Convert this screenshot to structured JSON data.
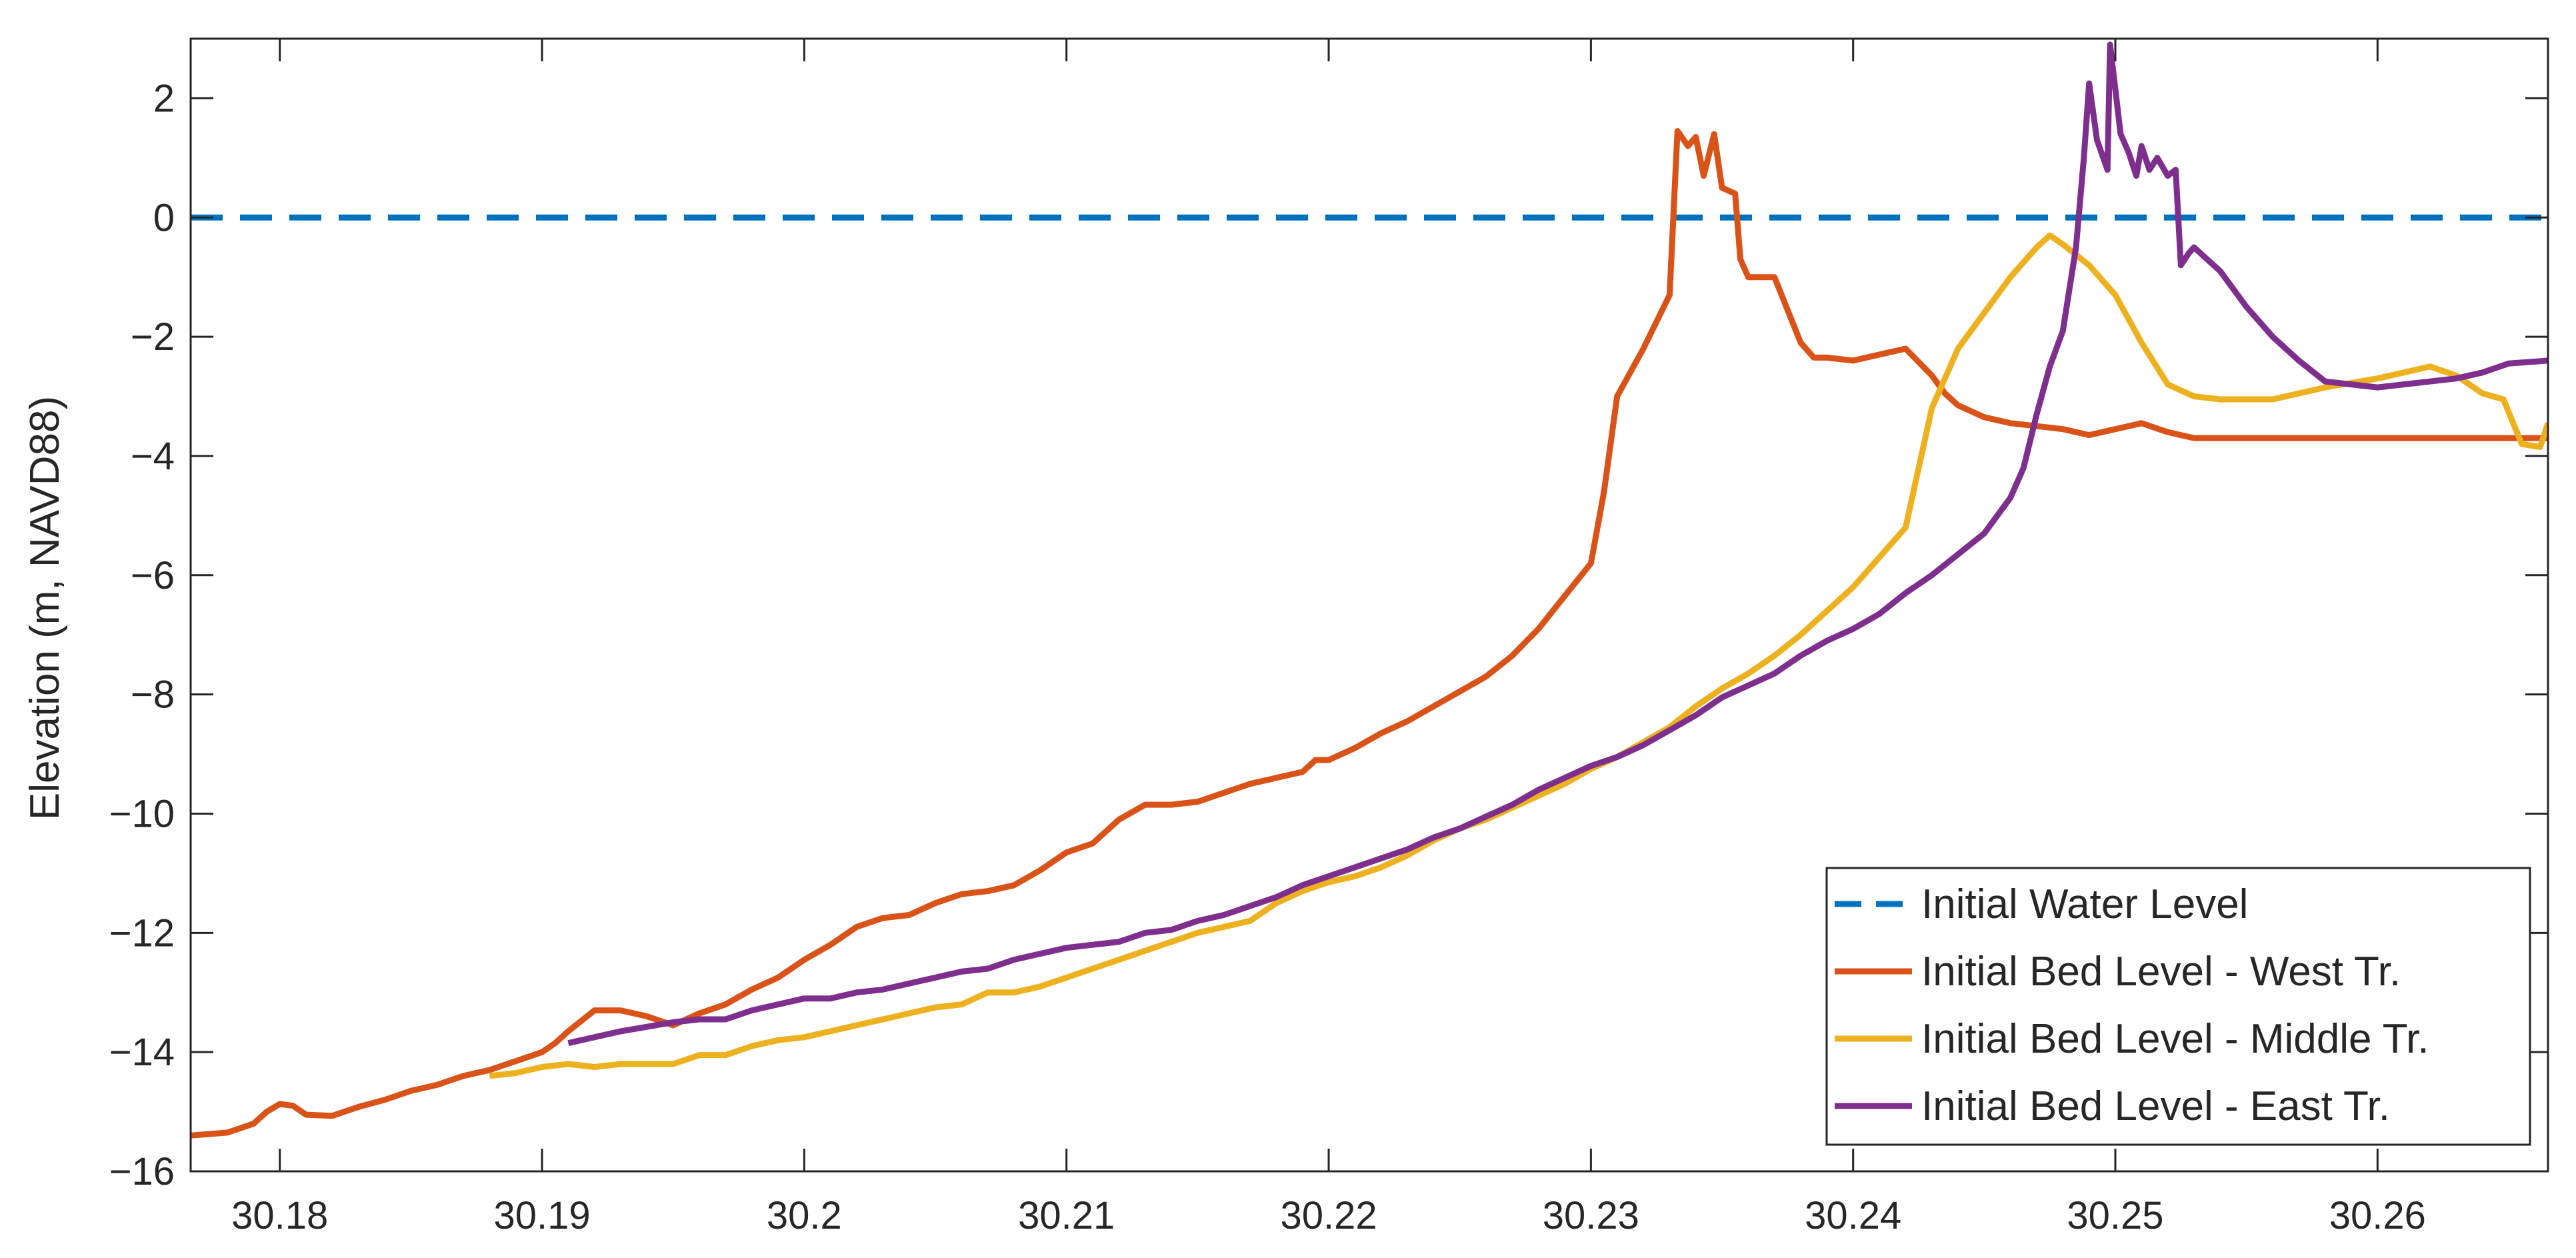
{
  "chart_data": {
    "type": "line",
    "ylabel": "Elevation (m, NAVD88)",
    "xlabel": "",
    "xlim": [
      30.1766,
      30.2665
    ],
    "ylim": [
      -16,
      3
    ],
    "xticks": [
      "30.18",
      "30.19",
      "30.2",
      "30.21",
      "30.22",
      "30.23",
      "30.24",
      "30.25",
      "30.26"
    ],
    "yticks": [
      "2",
      "0",
      "−2",
      "−4",
      "−6",
      "−8",
      "−10",
      "−12",
      "−14",
      "−16"
    ],
    "grid": false,
    "legend_position": "bottom-right",
    "series": [
      {
        "name": "Initial Water Level",
        "color": "#0072BD",
        "style": "dashed",
        "points": [
          [
            30.1766,
            0
          ],
          [
            30.2665,
            0
          ]
        ]
      },
      {
        "name": "Initial Bed Level - West Tr.",
        "color": "#D95319",
        "style": "solid",
        "points": [
          [
            30.1766,
            -15.4
          ],
          [
            30.178,
            -15.35
          ],
          [
            30.179,
            -15.2
          ],
          [
            30.1795,
            -15.0
          ],
          [
            30.18,
            -14.87
          ],
          [
            30.1805,
            -14.9
          ],
          [
            30.181,
            -15.05
          ],
          [
            30.182,
            -15.07
          ],
          [
            30.183,
            -14.92
          ],
          [
            30.184,
            -14.8
          ],
          [
            30.185,
            -14.65
          ],
          [
            30.186,
            -14.55
          ],
          [
            30.187,
            -14.4
          ],
          [
            30.188,
            -14.3
          ],
          [
            30.189,
            -14.15
          ],
          [
            30.19,
            -14.0
          ],
          [
            30.1905,
            -13.85
          ],
          [
            30.191,
            -13.65
          ],
          [
            30.192,
            -13.3
          ],
          [
            30.193,
            -13.3
          ],
          [
            30.194,
            -13.4
          ],
          [
            30.195,
            -13.55
          ],
          [
            30.196,
            -13.35
          ],
          [
            30.197,
            -13.2
          ],
          [
            30.198,
            -12.95
          ],
          [
            30.199,
            -12.75
          ],
          [
            30.2,
            -12.45
          ],
          [
            30.201,
            -12.2
          ],
          [
            30.202,
            -11.9
          ],
          [
            30.203,
            -11.75
          ],
          [
            30.204,
            -11.7
          ],
          [
            30.205,
            -11.5
          ],
          [
            30.206,
            -11.35
          ],
          [
            30.207,
            -11.3
          ],
          [
            30.208,
            -11.2
          ],
          [
            30.209,
            -10.95
          ],
          [
            30.21,
            -10.65
          ],
          [
            30.211,
            -10.5
          ],
          [
            30.212,
            -10.1
          ],
          [
            30.213,
            -9.85
          ],
          [
            30.214,
            -9.85
          ],
          [
            30.215,
            -9.8
          ],
          [
            30.216,
            -9.65
          ],
          [
            30.217,
            -9.5
          ],
          [
            30.218,
            -9.4
          ],
          [
            30.219,
            -9.3
          ],
          [
            30.2195,
            -9.1
          ],
          [
            30.22,
            -9.1
          ],
          [
            30.221,
            -8.9
          ],
          [
            30.222,
            -8.65
          ],
          [
            30.223,
            -8.45
          ],
          [
            30.224,
            -8.2
          ],
          [
            30.225,
            -7.95
          ],
          [
            30.226,
            -7.7
          ],
          [
            30.227,
            -7.35
          ],
          [
            30.228,
            -6.9
          ],
          [
            30.229,
            -6.35
          ],
          [
            30.23,
            -5.8
          ],
          [
            30.2305,
            -4.6
          ],
          [
            30.231,
            -3.0
          ],
          [
            30.232,
            -2.2
          ],
          [
            30.233,
            -1.3
          ],
          [
            30.2333,
            1.45
          ],
          [
            30.2337,
            1.2
          ],
          [
            30.234,
            1.35
          ],
          [
            30.2343,
            0.7
          ],
          [
            30.2347,
            1.4
          ],
          [
            30.235,
            0.5
          ],
          [
            30.2355,
            0.4
          ],
          [
            30.2357,
            -0.7
          ],
          [
            30.236,
            -1.0
          ],
          [
            30.237,
            -1.0
          ],
          [
            30.238,
            -2.1
          ],
          [
            30.2385,
            -2.35
          ],
          [
            30.239,
            -2.35
          ],
          [
            30.24,
            -2.4
          ],
          [
            30.241,
            -2.3
          ],
          [
            30.242,
            -2.2
          ],
          [
            30.243,
            -2.65
          ],
          [
            30.2435,
            -2.95
          ],
          [
            30.244,
            -3.15
          ],
          [
            30.245,
            -3.35
          ],
          [
            30.246,
            -3.45
          ],
          [
            30.247,
            -3.5
          ],
          [
            30.248,
            -3.55
          ],
          [
            30.249,
            -3.65
          ],
          [
            30.25,
            -3.55
          ],
          [
            30.251,
            -3.45
          ],
          [
            30.252,
            -3.6
          ],
          [
            30.253,
            -3.7
          ],
          [
            30.256,
            -3.7
          ],
          [
            30.26,
            -3.7
          ],
          [
            30.2665,
            -3.7
          ]
        ]
      },
      {
        "name": "Initial Bed Level - Middle Tr.",
        "color": "#EDB120",
        "style": "solid",
        "points": [
          [
            30.188,
            -14.4
          ],
          [
            30.189,
            -14.35
          ],
          [
            30.19,
            -14.25
          ],
          [
            30.191,
            -14.2
          ],
          [
            30.192,
            -14.25
          ],
          [
            30.193,
            -14.2
          ],
          [
            30.195,
            -14.2
          ],
          [
            30.196,
            -14.05
          ],
          [
            30.197,
            -14.05
          ],
          [
            30.198,
            -13.9
          ],
          [
            30.199,
            -13.8
          ],
          [
            30.2,
            -13.75
          ],
          [
            30.201,
            -13.65
          ],
          [
            30.202,
            -13.55
          ],
          [
            30.203,
            -13.45
          ],
          [
            30.204,
            -13.35
          ],
          [
            30.205,
            -13.25
          ],
          [
            30.206,
            -13.2
          ],
          [
            30.207,
            -13.0
          ],
          [
            30.208,
            -13.0
          ],
          [
            30.209,
            -12.9
          ],
          [
            30.21,
            -12.75
          ],
          [
            30.211,
            -12.6
          ],
          [
            30.212,
            -12.45
          ],
          [
            30.213,
            -12.3
          ],
          [
            30.214,
            -12.15
          ],
          [
            30.215,
            -12.0
          ],
          [
            30.216,
            -11.9
          ],
          [
            30.217,
            -11.8
          ],
          [
            30.218,
            -11.5
          ],
          [
            30.219,
            -11.3
          ],
          [
            30.22,
            -11.15
          ],
          [
            30.221,
            -11.05
          ],
          [
            30.222,
            -10.9
          ],
          [
            30.223,
            -10.7
          ],
          [
            30.224,
            -10.45
          ],
          [
            30.225,
            -10.25
          ],
          [
            30.226,
            -10.1
          ],
          [
            30.227,
            -9.9
          ],
          [
            30.228,
            -9.7
          ],
          [
            30.229,
            -9.5
          ],
          [
            30.23,
            -9.25
          ],
          [
            30.231,
            -9.05
          ],
          [
            30.232,
            -8.8
          ],
          [
            30.233,
            -8.55
          ],
          [
            30.234,
            -8.2
          ],
          [
            30.235,
            -7.9
          ],
          [
            30.236,
            -7.65
          ],
          [
            30.237,
            -7.35
          ],
          [
            30.238,
            -7.0
          ],
          [
            30.239,
            -6.6
          ],
          [
            30.24,
            -6.2
          ],
          [
            30.241,
            -5.7
          ],
          [
            30.242,
            -5.2
          ],
          [
            30.2425,
            -4.2
          ],
          [
            30.243,
            -3.2
          ],
          [
            30.244,
            -2.2
          ],
          [
            30.245,
            -1.6
          ],
          [
            30.246,
            -1.0
          ],
          [
            30.247,
            -0.5
          ],
          [
            30.2475,
            -0.3
          ],
          [
            30.248,
            -0.45
          ],
          [
            30.249,
            -0.8
          ],
          [
            30.25,
            -1.3
          ],
          [
            30.251,
            -2.1
          ],
          [
            30.252,
            -2.8
          ],
          [
            30.253,
            -3.0
          ],
          [
            30.254,
            -3.05
          ],
          [
            30.256,
            -3.05
          ],
          [
            30.258,
            -2.85
          ],
          [
            30.26,
            -2.7
          ],
          [
            30.261,
            -2.6
          ],
          [
            30.262,
            -2.5
          ],
          [
            30.263,
            -2.65
          ],
          [
            30.264,
            -2.95
          ],
          [
            30.2648,
            -3.05
          ],
          [
            30.2655,
            -3.8
          ],
          [
            30.2662,
            -3.85
          ],
          [
            30.2665,
            -3.45
          ]
        ]
      },
      {
        "name": "Initial Bed Level - East Tr.",
        "color": "#7E2F8E",
        "style": "solid",
        "points": [
          [
            30.191,
            -13.85
          ],
          [
            30.192,
            -13.75
          ],
          [
            30.193,
            -13.65
          ],
          [
            30.195,
            -13.5
          ],
          [
            30.196,
            -13.45
          ],
          [
            30.197,
            -13.45
          ],
          [
            30.198,
            -13.3
          ],
          [
            30.199,
            -13.2
          ],
          [
            30.2,
            -13.1
          ],
          [
            30.201,
            -13.1
          ],
          [
            30.202,
            -13.0
          ],
          [
            30.203,
            -12.95
          ],
          [
            30.204,
            -12.85
          ],
          [
            30.205,
            -12.75
          ],
          [
            30.206,
            -12.65
          ],
          [
            30.207,
            -12.6
          ],
          [
            30.208,
            -12.45
          ],
          [
            30.209,
            -12.35
          ],
          [
            30.21,
            -12.25
          ],
          [
            30.211,
            -12.2
          ],
          [
            30.212,
            -12.15
          ],
          [
            30.213,
            -12.0
          ],
          [
            30.214,
            -11.95
          ],
          [
            30.215,
            -11.8
          ],
          [
            30.216,
            -11.7
          ],
          [
            30.217,
            -11.55
          ],
          [
            30.218,
            -11.4
          ],
          [
            30.219,
            -11.2
          ],
          [
            30.22,
            -11.05
          ],
          [
            30.221,
            -10.9
          ],
          [
            30.222,
            -10.75
          ],
          [
            30.223,
            -10.6
          ],
          [
            30.224,
            -10.4
          ],
          [
            30.225,
            -10.25
          ],
          [
            30.226,
            -10.05
          ],
          [
            30.227,
            -9.85
          ],
          [
            30.228,
            -9.6
          ],
          [
            30.229,
            -9.4
          ],
          [
            30.23,
            -9.2
          ],
          [
            30.231,
            -9.05
          ],
          [
            30.232,
            -8.85
          ],
          [
            30.233,
            -8.6
          ],
          [
            30.234,
            -8.35
          ],
          [
            30.235,
            -8.05
          ],
          [
            30.236,
            -7.85
          ],
          [
            30.237,
            -7.65
          ],
          [
            30.238,
            -7.35
          ],
          [
            30.239,
            -7.1
          ],
          [
            30.24,
            -6.9
          ],
          [
            30.241,
            -6.65
          ],
          [
            30.242,
            -6.3
          ],
          [
            30.243,
            -6.0
          ],
          [
            30.244,
            -5.65
          ],
          [
            30.245,
            -5.3
          ],
          [
            30.246,
            -4.7
          ],
          [
            30.2465,
            -4.2
          ],
          [
            30.247,
            -3.3
          ],
          [
            30.2475,
            -2.5
          ],
          [
            30.248,
            -1.9
          ],
          [
            30.2485,
            -0.5
          ],
          [
            30.2488,
            1.0
          ],
          [
            30.249,
            2.25
          ],
          [
            30.2493,
            1.3
          ],
          [
            30.2497,
            0.8
          ],
          [
            30.2498,
            2.9
          ],
          [
            30.2502,
            1.4
          ],
          [
            30.2505,
            1.1
          ],
          [
            30.2508,
            0.7
          ],
          [
            30.251,
            1.2
          ],
          [
            30.2513,
            0.8
          ],
          [
            30.2516,
            1.0
          ],
          [
            30.252,
            0.7
          ],
          [
            30.2523,
            0.8
          ],
          [
            30.2525,
            -0.8
          ],
          [
            30.2528,
            -0.6
          ],
          [
            30.253,
            -0.5
          ],
          [
            30.254,
            -0.9
          ],
          [
            30.255,
            -1.5
          ],
          [
            30.256,
            -2.0
          ],
          [
            30.257,
            -2.4
          ],
          [
            30.258,
            -2.75
          ],
          [
            30.259,
            -2.8
          ],
          [
            30.26,
            -2.85
          ],
          [
            30.261,
            -2.8
          ],
          [
            30.262,
            -2.75
          ],
          [
            30.263,
            -2.7
          ],
          [
            30.264,
            -2.6
          ],
          [
            30.265,
            -2.45
          ],
          [
            30.2665,
            -2.4
          ]
        ]
      }
    ]
  }
}
